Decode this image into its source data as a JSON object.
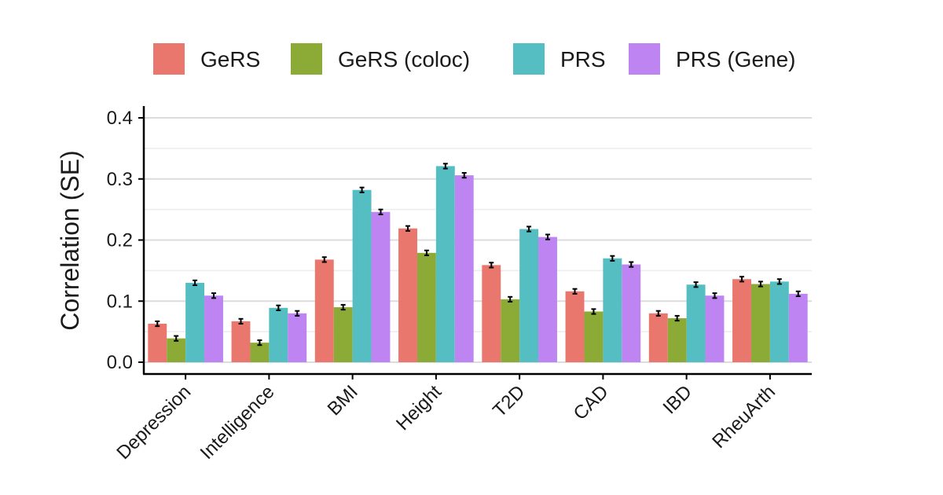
{
  "chart_data": {
    "type": "bar",
    "categories": [
      "Depression",
      "Intelligence",
      "BMI",
      "Height",
      "T2D",
      "CAD",
      "IBD",
      "RheuArth"
    ],
    "series": [
      {
        "name": "GeRS",
        "color": "#E9776E",
        "values": [
          0.063,
          0.067,
          0.168,
          0.219,
          0.159,
          0.116,
          0.08,
          0.136
        ],
        "se": [
          0.004,
          0.004,
          0.004,
          0.004,
          0.004,
          0.004,
          0.004,
          0.004
        ]
      },
      {
        "name": "GeRS (coloc)",
        "color": "#8CAB36",
        "values": [
          0.039,
          0.032,
          0.09,
          0.179,
          0.103,
          0.083,
          0.072,
          0.128
        ],
        "se": [
          0.004,
          0.004,
          0.004,
          0.004,
          0.004,
          0.004,
          0.004,
          0.004
        ]
      },
      {
        "name": "PRS",
        "color": "#55BEC3",
        "values": [
          0.13,
          0.089,
          0.282,
          0.321,
          0.218,
          0.17,
          0.127,
          0.132
        ],
        "se": [
          0.004,
          0.004,
          0.004,
          0.004,
          0.004,
          0.004,
          0.004,
          0.004
        ]
      },
      {
        "name": "PRS (Gene)",
        "color": "#BD84F2",
        "values": [
          0.109,
          0.08,
          0.246,
          0.306,
          0.205,
          0.16,
          0.109,
          0.112
        ],
        "se": [
          0.004,
          0.004,
          0.004,
          0.004,
          0.004,
          0.004,
          0.004,
          0.004
        ]
      }
    ],
    "ylabel": "Correlation (SE)",
    "xlabel": "",
    "ylim": [
      0,
      0.4
    ],
    "yticks": [
      0.0,
      0.1,
      0.2,
      0.3,
      0.4
    ],
    "ytick_labels": [
      "0.0",
      "0.1",
      "0.2",
      "0.3",
      "0.4"
    ],
    "grid": "horizontal",
    "legend_position": "top",
    "error_bars": true
  }
}
